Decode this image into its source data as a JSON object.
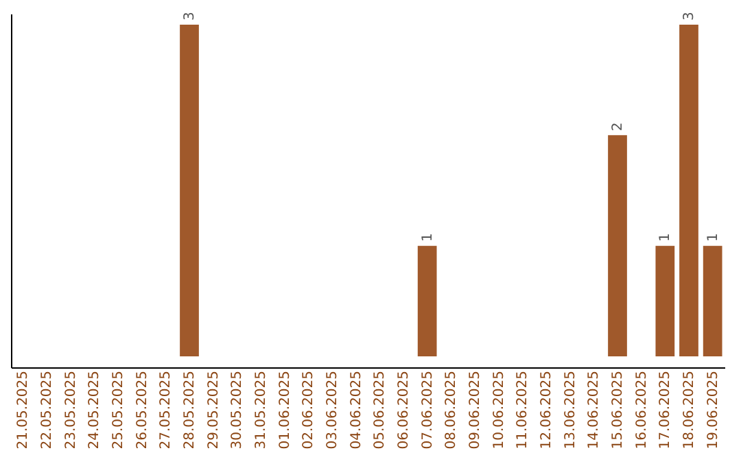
{
  "chart_data": {
    "type": "bar",
    "categories": [
      "21.05.2025",
      "22.05.2025",
      "23.05.2025",
      "24.05.2025",
      "25.05.2025",
      "26.05.2025",
      "27.05.2025",
      "28.05.2025",
      "29.05.2025",
      "30.05.2025",
      "31.05.2025",
      "01.06.2025",
      "02.06.2025",
      "03.06.2025",
      "04.06.2025",
      "05.06.2025",
      "06.06.2025",
      "07.06.2025",
      "08.06.2025",
      "09.06.2025",
      "10.06.2025",
      "11.06.2025",
      "12.06.2025",
      "13.06.2025",
      "14.06.2025",
      "15.06.2025",
      "16.06.2025",
      "17.06.2025",
      "18.06.2025",
      "19.06.2025"
    ],
    "values": [
      0,
      0,
      0,
      0,
      0,
      0,
      0,
      3,
      0,
      0,
      0,
      0,
      0,
      0,
      0,
      0,
      0,
      1,
      0,
      0,
      0,
      0,
      0,
      0,
      0,
      2,
      0,
      1,
      3,
      1
    ],
    "color": "#a0592b",
    "value_labels": [
      null,
      null,
      null,
      null,
      null,
      null,
      null,
      "3",
      null,
      null,
      null,
      null,
      null,
      null,
      null,
      null,
      null,
      "1",
      null,
      null,
      null,
      null,
      null,
      null,
      null,
      "2",
      null,
      "1",
      "3",
      "1"
    ],
    "tick_labels": "x"
  }
}
